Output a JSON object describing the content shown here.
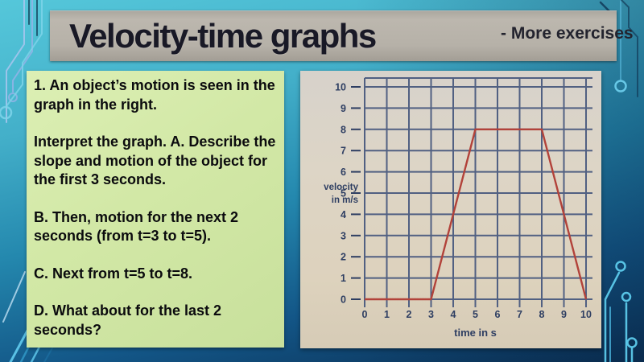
{
  "slide": {
    "title": "Velocity-time graphs",
    "subtitle": "- More exercises",
    "question_box": {
      "paragraphs": [
        "1. An object’s motion is seen in the graph in the right.",
        "Interpret the graph. A. Describe the slope and motion of the object for the first 3 seconds.",
        "B. Then, motion for the next 2 seconds (from t=3 to t=5).",
        "C. Next from t=5 to t=8.",
        "D.  What about for the last 2 seconds?"
      ]
    }
  },
  "chart_data": {
    "type": "line",
    "title": "",
    "xlabel": "time in s",
    "ylabel": "velocity in m/s",
    "ylabel_lines": [
      "velocity",
      "in m/s"
    ],
    "series": [
      {
        "name": "velocity",
        "x": [
          0,
          3,
          5,
          8,
          10
        ],
        "y": [
          0,
          0,
          8,
          8,
          0
        ]
      }
    ],
    "xlim": [
      0,
      10
    ],
    "ylim": [
      0,
      10
    ],
    "xticks": [
      0,
      1,
      2,
      3,
      4,
      5,
      6,
      7,
      8,
      9,
      10
    ],
    "yticks": [
      0,
      1,
      2,
      3,
      4,
      5,
      6,
      7,
      8,
      9,
      10
    ],
    "grid": true,
    "legend": false
  },
  "colors": {
    "line": "#b2423a",
    "grid": "#516082",
    "axis_label": "#2e3e62",
    "banner_bg": "#b6b1a8",
    "question_bg": "#d2e8a6",
    "slide_top": "#55c7da",
    "slide_bottom": "#0a2c50"
  }
}
